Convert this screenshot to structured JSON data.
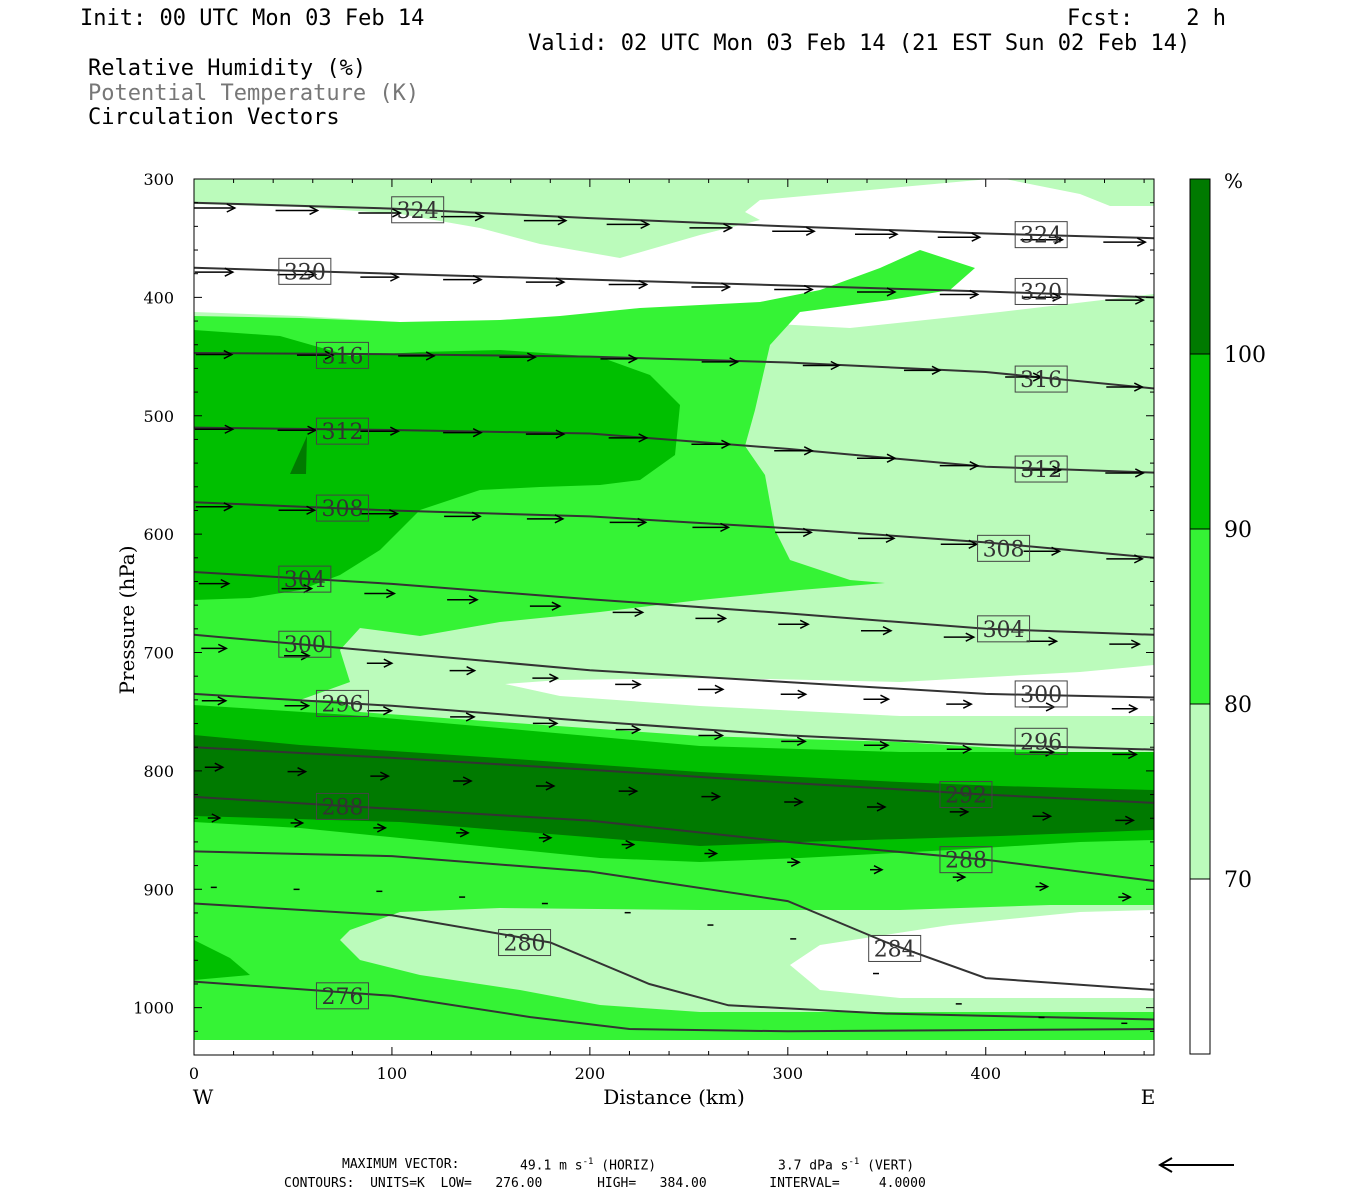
{
  "header": {
    "init": "Init: 00 UTC Mon 03 Feb 14",
    "fcst": "Fcst:    2 h",
    "valid": "Valid: 02 UTC Mon 03 Feb 14 (21 EST Sun 02 Feb 14)",
    "fields": [
      "Relative Humidity (%)",
      "Potential Temperature (K)",
      "Circulation Vectors"
    ]
  },
  "footer": {
    "max_vector_label": "MAXIMUM VECTOR:",
    "max_horiz": "49.1 m s",
    "max_horiz_unit": "(HORIZ)",
    "max_vert": "3.7 dPa s",
    "max_vert_unit": "(VERT)",
    "exp": "-1",
    "contours": "CONTOURS:  UNITS=K  LOW=   276.00       HIGH=   384.00        INTERVAL=     4.0000"
  },
  "colors": {
    "rh_70_80": "#bbfbbb",
    "rh_80_90": "#35f335",
    "rh_90_100": "#00bf00",
    "rh_100": "#007a00",
    "contour": "#333333"
  },
  "chart_data": {
    "type": "cross-section",
    "xlabel": "Distance (km)",
    "ylabel": "Pressure (hPa)",
    "x_ticks": [
      0,
      100,
      200,
      300,
      400
    ],
    "y_ticks": [
      300,
      400,
      500,
      600,
      700,
      800,
      900,
      1000
    ],
    "xlim": [
      0,
      485
    ],
    "ylim": [
      1040,
      300
    ],
    "x_end_labels": [
      "W",
      "E"
    ],
    "colorbar": {
      "unit": "%",
      "ticks": [
        "70",
        "80",
        "90",
        "100"
      ]
    },
    "theta_contours": [
      {
        "label": "324",
        "points": [
          [
            0,
            320
          ],
          [
            100,
            325
          ],
          [
            200,
            333
          ],
          [
            300,
            340
          ],
          [
            400,
            346
          ],
          [
            485,
            350
          ]
        ],
        "labels_at": [
          [
            113,
            326
          ],
          [
            428,
            347
          ]
        ]
      },
      {
        "label": "320",
        "points": [
          [
            0,
            375
          ],
          [
            100,
            380
          ],
          [
            200,
            385
          ],
          [
            300,
            390
          ],
          [
            400,
            395
          ],
          [
            485,
            400
          ]
        ],
        "labels_at": [
          [
            56,
            378
          ],
          [
            428,
            395
          ]
        ]
      },
      {
        "label": "316",
        "points": [
          [
            0,
            447
          ],
          [
            100,
            448
          ],
          [
            200,
            450
          ],
          [
            300,
            455
          ],
          [
            400,
            463
          ],
          [
            485,
            477
          ]
        ],
        "labels_at": [
          [
            75,
            449
          ],
          [
            428,
            469
          ]
        ]
      },
      {
        "label": "312",
        "points": [
          [
            0,
            510
          ],
          [
            100,
            512
          ],
          [
            200,
            515
          ],
          [
            300,
            528
          ],
          [
            400,
            543
          ],
          [
            485,
            548
          ]
        ],
        "labels_at": [
          [
            75,
            513
          ],
          [
            428,
            545
          ]
        ]
      },
      {
        "label": "308",
        "points": [
          [
            0,
            573
          ],
          [
            100,
            580
          ],
          [
            200,
            585
          ],
          [
            300,
            595
          ],
          [
            400,
            607
          ],
          [
            485,
            620
          ]
        ],
        "labels_at": [
          [
            75,
            578
          ],
          [
            409,
            612
          ]
        ]
      },
      {
        "label": "304",
        "points": [
          [
            0,
            632
          ],
          [
            100,
            642
          ],
          [
            200,
            655
          ],
          [
            300,
            667
          ],
          [
            400,
            680
          ],
          [
            485,
            685
          ]
        ],
        "labels_at": [
          [
            56,
            638
          ],
          [
            409,
            680
          ]
        ]
      },
      {
        "label": "300",
        "points": [
          [
            0,
            685
          ],
          [
            100,
            700
          ],
          [
            200,
            715
          ],
          [
            300,
            725
          ],
          [
            400,
            735
          ],
          [
            485,
            738
          ]
        ],
        "labels_at": [
          [
            56,
            693
          ],
          [
            428,
            735
          ]
        ]
      },
      {
        "label": "296",
        "points": [
          [
            0,
            735
          ],
          [
            100,
            745
          ],
          [
            200,
            758
          ],
          [
            300,
            770
          ],
          [
            400,
            778
          ],
          [
            485,
            782
          ]
        ],
        "labels_at": [
          [
            75,
            743
          ],
          [
            428,
            775
          ]
        ]
      },
      {
        "label": "292",
        "points": [
          [
            0,
            780
          ],
          [
            100,
            789
          ],
          [
            200,
            799
          ],
          [
            300,
            810
          ],
          [
            400,
            820
          ],
          [
            485,
            827
          ]
        ],
        "labels_at": [
          [
            390,
            820
          ]
        ]
      },
      {
        "label": "288",
        "points": [
          [
            0,
            822
          ],
          [
            100,
            832
          ],
          [
            200,
            842
          ],
          [
            300,
            860
          ],
          [
            400,
            875
          ],
          [
            485,
            893
          ]
        ],
        "labels_at": [
          [
            75,
            830
          ],
          [
            390,
            875
          ]
        ]
      },
      {
        "label": "284",
        "points": [
          [
            0,
            868
          ],
          [
            100,
            872
          ],
          [
            200,
            885
          ],
          [
            300,
            910
          ],
          [
            350,
            945
          ],
          [
            400,
            975
          ],
          [
            485,
            985
          ]
        ],
        "labels_at": [
          [
            354,
            950
          ]
        ]
      },
      {
        "label": "280",
        "points": [
          [
            0,
            912
          ],
          [
            100,
            922
          ],
          [
            180,
            945
          ],
          [
            230,
            980
          ],
          [
            270,
            998
          ],
          [
            350,
            1005
          ],
          [
            485,
            1010
          ]
        ],
        "labels_at": [
          [
            167,
            945
          ]
        ]
      },
      {
        "label": "276",
        "points": [
          [
            0,
            978
          ],
          [
            100,
            990
          ],
          [
            170,
            1008
          ],
          [
            220,
            1018
          ],
          [
            300,
            1020
          ],
          [
            485,
            1018
          ]
        ],
        "labels_at": [
          [
            75,
            990
          ]
        ]
      }
    ]
  }
}
